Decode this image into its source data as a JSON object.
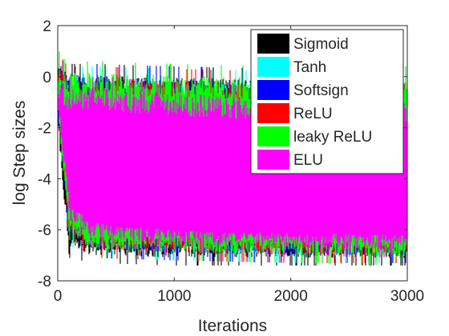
{
  "chart_data": {
    "type": "line",
    "title": "",
    "xlabel": "Iterations",
    "ylabel": "log Step sizes",
    "xlim": [
      0,
      3000
    ],
    "ylim": [
      -8,
      2
    ],
    "xticks": [
      0,
      1000,
      2000,
      3000
    ],
    "yticks": [
      2,
      0,
      -2,
      -4,
      -6,
      -8
    ],
    "grid": false,
    "legend_position": "top-right",
    "series": [
      {
        "name": "Sigmoid",
        "color": "#000000",
        "band": {
          "x": [
            0,
            50,
            100,
            300,
            1000,
            2000,
            3000
          ],
          "upper": [
            0.3,
            -0.1,
            -0.3,
            -0.3,
            -0.4,
            -0.5,
            -0.5
          ],
          "lower": [
            -1.5,
            -4.5,
            -6.5,
            -6.7,
            -6.8,
            -6.8,
            -6.8
          ]
        }
      },
      {
        "name": "Tanh",
        "color": "#00ffff",
        "band": {
          "x": [
            0,
            50,
            100,
            300,
            1000,
            2000,
            3000
          ],
          "upper": [
            0.2,
            -0.2,
            -0.4,
            -0.4,
            -0.5,
            -0.6,
            -0.6
          ],
          "lower": [
            -1.0,
            -3.5,
            -6.0,
            -6.5,
            -6.6,
            -6.7,
            -6.7
          ]
        }
      },
      {
        "name": "Softsign",
        "color": "#0000ff",
        "band": {
          "x": [
            0,
            50,
            100,
            300,
            1000,
            2000,
            3000
          ],
          "upper": [
            0.3,
            -0.1,
            -0.3,
            -0.3,
            -0.4,
            -0.5,
            -0.5
          ],
          "lower": [
            -1.0,
            -3.5,
            -5.8,
            -6.5,
            -6.6,
            -6.7,
            -6.7
          ]
        }
      },
      {
        "name": "ReLU",
        "color": "#ff0000",
        "band": {
          "x": [
            0,
            50,
            100,
            300,
            1000,
            2000,
            3000
          ],
          "upper": [
            0.2,
            -0.2,
            -0.4,
            -0.4,
            -0.5,
            -0.6,
            -0.6
          ],
          "lower": [
            -1.0,
            -3.5,
            -5.8,
            -6.5,
            -6.6,
            -6.7,
            -6.7
          ]
        }
      },
      {
        "name": "leaky ReLU",
        "color": "#00ff00",
        "band": {
          "x": [
            0,
            50,
            100,
            300,
            1000,
            2000,
            3000
          ],
          "upper": [
            0.3,
            -0.1,
            -0.2,
            -0.2,
            -0.3,
            -0.4,
            -0.4
          ],
          "lower": [
            -1.0,
            -3.5,
            -5.8,
            -6.5,
            -6.6,
            -6.7,
            -6.8
          ]
        }
      },
      {
        "name": "ELU",
        "color": "#ff00ff",
        "band": {
          "x": [
            0,
            50,
            100,
            300,
            1000,
            2000,
            3000
          ],
          "upper": [
            -0.2,
            -0.6,
            -0.8,
            -0.8,
            -1.0,
            -1.2,
            -1.4
          ],
          "lower": [
            -0.8,
            -3.0,
            -5.3,
            -6.0,
            -6.3,
            -6.4,
            -6.5
          ]
        }
      }
    ]
  }
}
